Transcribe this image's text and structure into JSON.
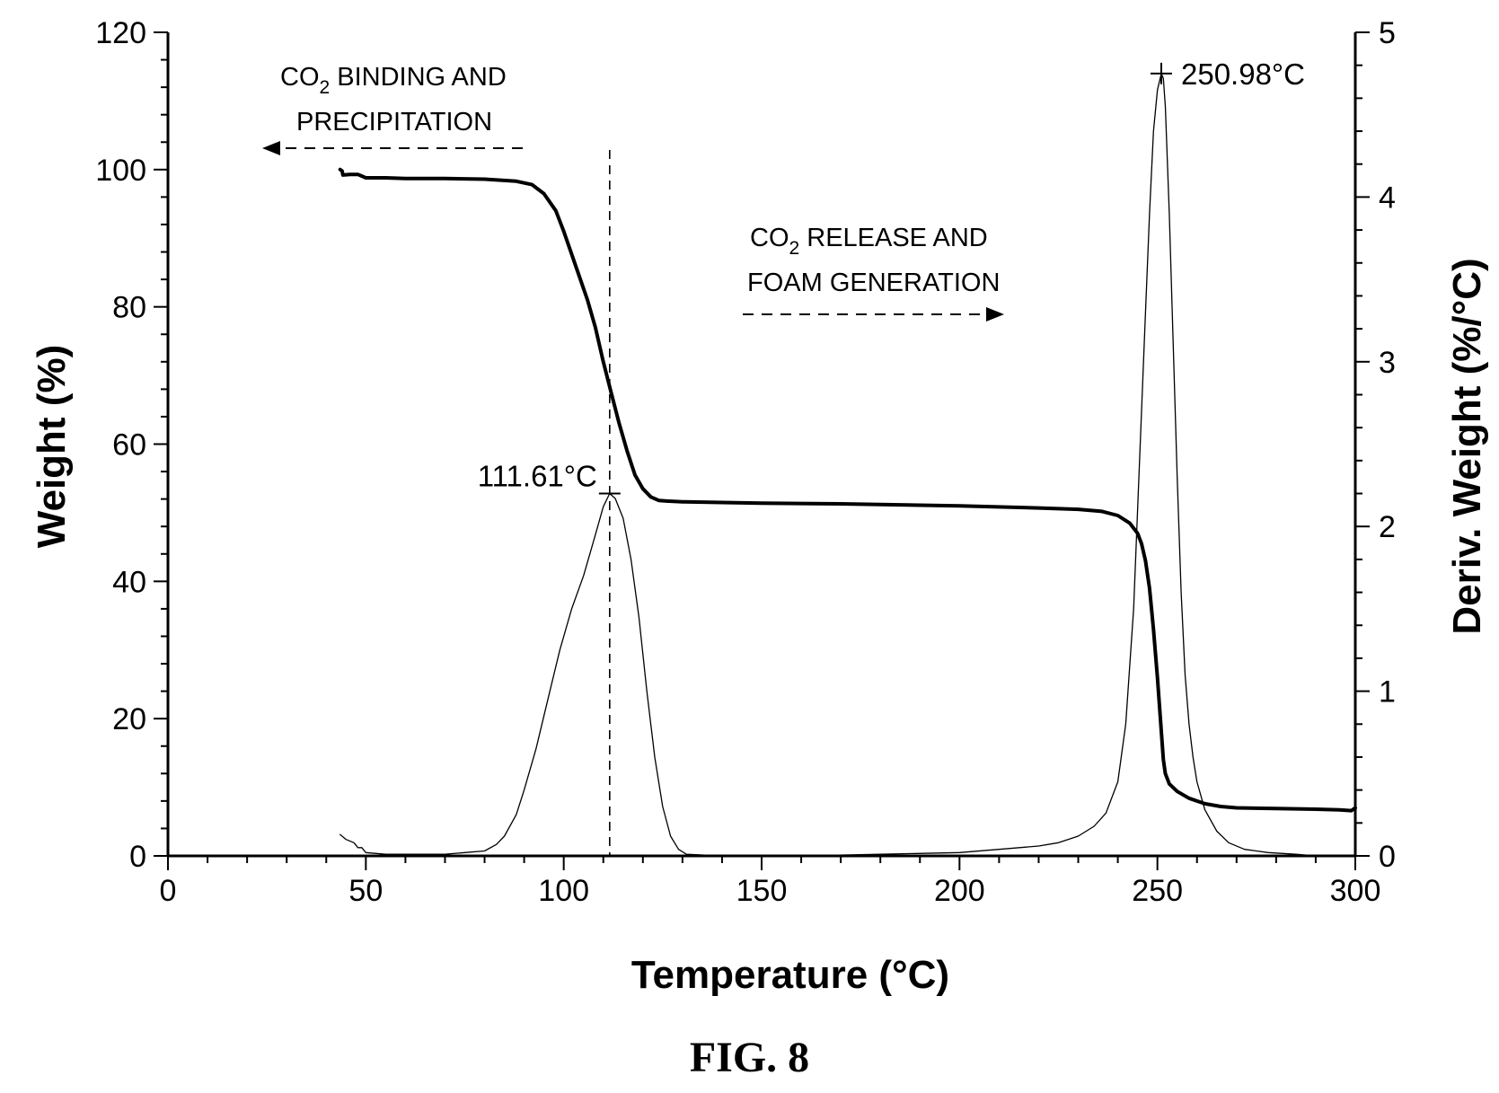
{
  "figure_label": "FIG. 8",
  "chart_data": {
    "type": "line",
    "xlabel": "Temperature (°C)",
    "ylabel": "Weight (%)",
    "y2label": "Deriv. Weight (%/°C)",
    "xlim": [
      0,
      300
    ],
    "ylim": [
      0,
      120
    ],
    "y2lim": [
      0,
      5
    ],
    "x_ticks": [
      0,
      50,
      100,
      150,
      200,
      250,
      300
    ],
    "y_ticks": [
      0,
      20,
      40,
      60,
      80,
      100,
      120
    ],
    "y2_ticks": [
      0,
      1,
      2,
      3,
      4,
      5
    ],
    "grid": false,
    "series": [
      {
        "axis": "left",
        "style": "thick",
        "x": [
          43.5,
          44,
          44.2,
          46,
          48,
          50,
          55,
          60,
          70,
          80,
          88,
          92,
          95,
          98,
          100,
          103,
          106,
          108,
          110,
          112,
          114,
          116,
          118,
          120,
          122,
          124,
          126,
          130,
          140,
          150,
          170,
          200,
          220,
          230,
          236,
          240,
          243,
          245,
          246,
          247,
          248,
          249,
          250,
          251,
          251.5,
          252,
          253,
          255,
          258,
          262,
          266,
          270,
          280,
          290,
          296,
          299,
          300
        ],
        "y": [
          100,
          99.8,
          99.2,
          99.3,
          99.3,
          98.8,
          98.8,
          98.7,
          98.7,
          98.6,
          98.3,
          97.8,
          96.5,
          94,
          91,
          86,
          81,
          77,
          72,
          67.5,
          63,
          59,
          55.5,
          53.5,
          52.3,
          51.8,
          51.7,
          51.6,
          51.5,
          51.4,
          51.3,
          51,
          50.7,
          50.5,
          50.2,
          49.6,
          48.5,
          47,
          45.5,
          43,
          39,
          33,
          26,
          18,
          14,
          12,
          10.5,
          9.4,
          8.4,
          7.6,
          7.2,
          7,
          6.9,
          6.8,
          6.7,
          6.6,
          7
        ]
      },
      {
        "axis": "right",
        "style": "thin",
        "x": [
          43.5,
          45,
          47,
          48,
          49,
          50,
          55,
          60,
          70,
          75,
          80,
          83,
          85,
          88,
          90,
          93,
          96,
          99,
          102,
          105,
          108,
          110,
          111.61,
          113,
          115,
          117,
          119,
          121,
          123,
          125,
          127,
          129,
          131,
          140,
          160,
          180,
          200,
          210,
          220,
          225,
          230,
          234,
          237,
          240,
          242,
          244,
          245,
          246,
          247,
          248,
          249,
          250,
          250.98,
          251.5,
          252,
          253,
          254,
          255,
          256,
          257,
          258,
          259,
          260,
          262,
          265,
          268,
          272,
          278,
          285,
          290,
          300
        ],
        "y": [
          0.13,
          0.1,
          0.08,
          0.05,
          0.05,
          0.02,
          0.01,
          0.01,
          0.01,
          0.02,
          0.03,
          0.07,
          0.12,
          0.25,
          0.4,
          0.65,
          0.95,
          1.25,
          1.5,
          1.7,
          1.95,
          2.12,
          2.2,
          2.17,
          2.05,
          1.8,
          1.45,
          1.0,
          0.6,
          0.3,
          0.12,
          0.04,
          0.01,
          0.0,
          0.0,
          0.01,
          0.02,
          0.04,
          0.06,
          0.08,
          0.12,
          0.18,
          0.26,
          0.45,
          0.8,
          1.5,
          2.1,
          2.7,
          3.3,
          3.9,
          4.4,
          4.65,
          4.75,
          4.72,
          4.55,
          3.9,
          3.1,
          2.3,
          1.6,
          1.1,
          0.8,
          0.6,
          0.45,
          0.28,
          0.15,
          0.08,
          0.04,
          0.02,
          0.01,
          0.0,
          0.0
        ]
      }
    ],
    "peaks": [
      {
        "label": "111.61°C",
        "x": 111.61,
        "y2": 2.2
      },
      {
        "label": "250.98°C",
        "x": 250.98,
        "y2": 4.75
      }
    ],
    "vline_x": 111.61,
    "annotations": [
      {
        "lines": [
          "CO",
          "2",
          " BINDING AND",
          "PRECIPITATION"
        ],
        "arrow": "left"
      },
      {
        "lines": [
          "CO",
          "2",
          " RELEASE  AND",
          "FOAM GENERATION"
        ],
        "arrow": "right"
      }
    ]
  }
}
